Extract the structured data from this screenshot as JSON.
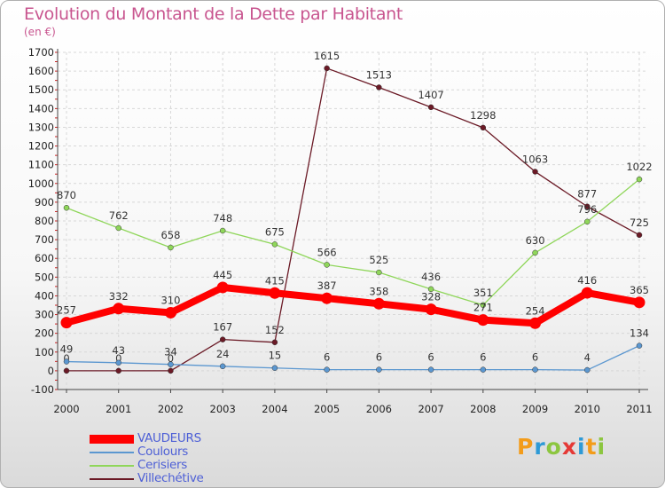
{
  "header": {
    "title": "Evolution du Montant de la Dette par Habitant",
    "subtitle": "(en €)"
  },
  "chart_data": {
    "type": "line",
    "title": "Evolution du Montant de la Dette par Habitant",
    "subtitle": "(en €)",
    "ylim": [
      -100,
      1700
    ],
    "yticks": [
      -100,
      0,
      100,
      200,
      300,
      400,
      500,
      600,
      700,
      800,
      900,
      1000,
      1100,
      1200,
      1300,
      1400,
      1500,
      1600,
      1700
    ],
    "x": [
      "2000",
      "2001",
      "2002",
      "2003",
      "2004",
      "2005",
      "2006",
      "2007",
      "2008",
      "2009",
      "2010",
      "2011"
    ],
    "grid": true,
    "legend_position": "bottom-left",
    "series": [
      {
        "name": "Villechétive",
        "color": "#6b1a26",
        "values": [
          0,
          0,
          0,
          167,
          152,
          1615,
          1513,
          1407,
          1298,
          1063,
          877,
          725
        ]
      },
      {
        "name": "Cerisiers",
        "color": "#8fd65a",
        "values": [
          870,
          762,
          658,
          748,
          675,
          566,
          525,
          436,
          351,
          630,
          796,
          1022
        ]
      },
      {
        "name": "Coulours",
        "color": "#5b97d0",
        "values": [
          49,
          43,
          34,
          24,
          15,
          6,
          6,
          6,
          6,
          6,
          4,
          134
        ]
      },
      {
        "name": "VAUDEURS",
        "color": "#ff0000",
        "values": [
          257,
          332,
          310,
          445,
          415,
          387,
          358,
          328,
          271,
          254,
          416,
          365
        ]
      }
    ]
  },
  "legend": [
    {
      "label": "VAUDEURS",
      "color": "#ff0000"
    },
    {
      "label": "Coulours",
      "color": "#5b97d0"
    },
    {
      "label": "Cerisiers",
      "color": "#8fd65a"
    },
    {
      "label": "Villechétive",
      "color": "#6b1a26"
    }
  ],
  "logo": {
    "text": "Proxiti",
    "letters": [
      {
        "ch": "P",
        "color": "#f39c1a"
      },
      {
        "ch": "r",
        "color": "#2e9ad6"
      },
      {
        "ch": "o",
        "color": "#8cc63f"
      },
      {
        "ch": "x",
        "color": "#e53935"
      },
      {
        "ch": "i",
        "color": "#2e9ad6"
      },
      {
        "ch": "t",
        "color": "#f39c1a"
      },
      {
        "ch": "i",
        "color": "#8cc63f"
      }
    ]
  }
}
